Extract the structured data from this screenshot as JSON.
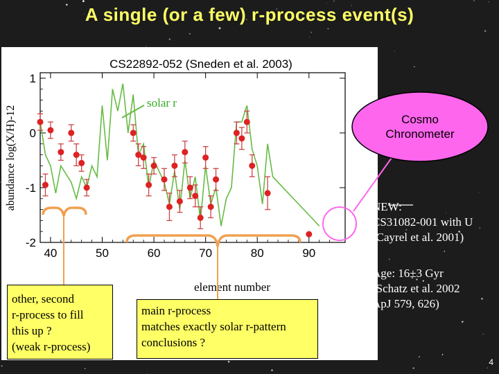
{
  "slide": {
    "title": "A single (or a few) r-process event(s)",
    "number": "4"
  },
  "colors": {
    "background": "#1c1c1c",
    "title": "#ffff66",
    "solar_line": "#66bb44",
    "star_points": "#dd2222",
    "error_bars": "#cc4444",
    "callout_fill": "#ffff66",
    "bracket": "#f0a050",
    "ellipse_fill": "#ff66ee",
    "circle_outline": "#ff66ee"
  },
  "chart_data": {
    "type": "scatter",
    "title": "CS22892-052 (Sneden et al. 2003)",
    "xlabel": "element number",
    "ylabel": "abundance log(X/H)-12",
    "xlim": [
      38,
      97
    ],
    "ylim": [
      -2,
      1.1
    ],
    "xticks": [
      40,
      50,
      60,
      70,
      80,
      90
    ],
    "yticks": [
      1,
      0,
      -1,
      -2
    ],
    "grid": false,
    "annotations": [
      "solar r"
    ],
    "series": [
      {
        "name": "solar r",
        "style": "line",
        "x": [
          38,
          39,
          40,
          41,
          42,
          44,
          45,
          46,
          47,
          48,
          49,
          50,
          51,
          52,
          53,
          54,
          55,
          56,
          57,
          58,
          59,
          60,
          62,
          63,
          64,
          65,
          66,
          67,
          68,
          69,
          70,
          71,
          72,
          73,
          74,
          75,
          76,
          77,
          78,
          79,
          80,
          81,
          82,
          83,
          90,
          92
        ],
        "y": [
          0.2,
          -0.4,
          -0.6,
          -1.1,
          -0.6,
          -0.9,
          -1.2,
          -0.8,
          -1.0,
          -0.6,
          -0.8,
          0.5,
          -0.5,
          0.8,
          0.4,
          0.9,
          0.0,
          0.7,
          -0.4,
          -0.2,
          -1.0,
          -0.5,
          -0.9,
          -1.3,
          -0.7,
          -1.4,
          -0.5,
          -1.2,
          -0.8,
          -1.6,
          -0.6,
          -1.3,
          -1.0,
          -1.7,
          -1.2,
          -1.0,
          0.2,
          0.2,
          0.5,
          -0.3,
          -0.6,
          -1.3,
          -0.2,
          -0.8,
          -1.5,
          -1.7
        ]
      },
      {
        "name": "CS22892-052",
        "style": "points",
        "x": [
          38,
          39,
          40,
          42,
          44,
          45,
          46,
          47,
          56,
          57,
          58,
          59,
          60,
          62,
          63,
          64,
          65,
          66,
          67,
          68,
          69,
          70,
          71,
          72,
          76,
          77,
          78,
          79,
          82,
          90
        ],
        "y": [
          0.2,
          -0.95,
          0.05,
          -0.35,
          0.0,
          -0.4,
          -0.55,
          -1.0,
          0.0,
          -0.4,
          -0.45,
          -0.95,
          -0.6,
          -0.85,
          -1.35,
          -0.6,
          -1.25,
          -0.35,
          -1.0,
          -1.15,
          -1.55,
          -0.45,
          -1.35,
          -0.85,
          0.0,
          -0.1,
          0.2,
          -0.6,
          -1.1,
          -1.85
        ],
        "err": [
          0.15,
          0.2,
          0.15,
          0.15,
          0.15,
          0.2,
          0.15,
          0.15,
          0.15,
          0.2,
          0.2,
          0.2,
          0.15,
          0.2,
          0.25,
          0.2,
          0.2,
          0.2,
          0.2,
          0.2,
          0.2,
          0.2,
          0.2,
          0.2,
          0.2,
          0.2,
          0.2,
          0.2,
          0.3,
          0.0
        ]
      }
    ]
  },
  "callouts": {
    "cosmo": "Cosmo\nChronometer",
    "weak": "other, second\nr-process to fill\nthis up ?\n(weak r-process)",
    "main": "main r-process\nmatches exactly solar r-pattern\nconclusions ?",
    "new_star": "NEW:\nCS31082-001 with U\n(Cayrel et al. 2001)",
    "age": "Age: 16±3 Gyr\n(Schatz et al. 2002\nApJ 579, 626)"
  }
}
